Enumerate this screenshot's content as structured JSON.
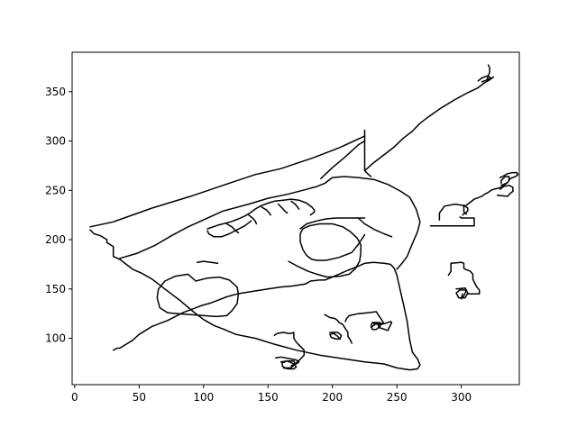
{
  "chart_data": {
    "type": "line",
    "title": "",
    "xlabel": "",
    "ylabel": "",
    "xlim": [
      -2,
      345
    ],
    "ylim": [
      53,
      390
    ],
    "x_ticks": [
      0,
      50,
      100,
      150,
      200,
      250,
      300
    ],
    "y_ticks": [
      100,
      150,
      200,
      250,
      300,
      350
    ],
    "x_tick_labels": [
      "0",
      "50",
      "100",
      "150",
      "200",
      "250",
      "300"
    ],
    "y_tick_labels": [
      "100",
      "150",
      "200",
      "250",
      "300",
      "350"
    ],
    "grid": false,
    "line_color": "#000000",
    "series": [
      {
        "x": [
          12,
          30,
          60,
          90,
          115,
          140,
          160,
          185,
          205,
          225
        ],
        "y": [
          213,
          218,
          232,
          244,
          255,
          266,
          272,
          283,
          293,
          305
        ]
      },
      {
        "x": [
          12,
          15,
          20,
          25,
          25,
          30,
          30,
          30,
          30,
          35,
          40,
          45,
          52,
          60,
          70,
          82,
          92,
          100,
          108,
          116,
          125,
          140,
          155,
          172,
          190,
          210,
          225,
          240,
          250,
          260,
          266,
          268,
          266,
          262,
          260,
          258,
          255,
          252,
          250,
          248,
          245,
          240,
          232,
          225,
          220,
          212,
          205,
          198,
          194,
          190,
          183,
          179,
          169,
          160,
          150,
          140,
          126,
          118,
          112,
          106,
          98,
          90,
          84,
          78,
          72,
          66,
          60,
          55,
          50,
          45,
          40,
          35,
          33,
          30
        ],
        "y": [
          210,
          206,
          204,
          200,
          197,
          193,
          190,
          186,
          183,
          180,
          175,
          170,
          166,
          160,
          150,
          138,
          127,
          119,
          113,
          109,
          104,
          100,
          94,
          88,
          83,
          79,
          76,
          74,
          70,
          68,
          69,
          73,
          79,
          86,
          98,
          117,
          135,
          152,
          164,
          171,
          175,
          176,
          177,
          176,
          173,
          169,
          165,
          161,
          159,
          159,
          158,
          155,
          153,
          152,
          150,
          148,
          145,
          142,
          139,
          136,
          133,
          129,
          126,
          122,
          118,
          115,
          112,
          108,
          104,
          98,
          94,
          90,
          90,
          88
        ]
      },
      {
        "x": [
          35,
          48,
          62,
          75,
          88,
          100,
          115,
          135,
          150,
          165,
          180,
          185,
          186,
          188,
          190,
          194,
          196,
          200,
          209,
          220,
          232,
          243,
          253,
          260,
          265,
          268,
          266,
          262,
          258,
          254,
          250
        ],
        "y": [
          181,
          186,
          194,
          204,
          213,
          220,
          229,
          236,
          242,
          246,
          251,
          253,
          253,
          254,
          255,
          257,
          259,
          263,
          264,
          263,
          261,
          256,
          249,
          243,
          231,
          218,
          208,
          196,
          183,
          176,
          170
        ]
      },
      {
        "x": [
          191,
          200,
          210,
          220,
          225
        ],
        "y": [
          262,
          273,
          284,
          296,
          300
        ]
      },
      {
        "x": [
          225,
          225,
          228,
          230
        ],
        "y": [
          311,
          270,
          266,
          264
        ]
      },
      {
        "x": [
          225,
          232,
          240,
          248,
          255,
          262,
          268,
          275,
          285,
          295,
          305,
          313,
          318,
          322,
          325
        ],
        "y": [
          270,
          278,
          286,
          294,
          303,
          310,
          318,
          325,
          334,
          342,
          349,
          354,
          359,
          362,
          365
        ]
      },
      {
        "x": [
          320,
          321,
          322,
          322,
          321
        ],
        "y": [
          363,
          366,
          370,
          374,
          377
        ]
      },
      {
        "x": [
          316,
          320,
          323,
          320,
          316,
          313
        ],
        "y": [
          360,
          362,
          364,
          366,
          364,
          361
        ]
      },
      {
        "x": [
          94,
          103,
          112,
          120,
          126,
          127,
          126,
          122,
          118,
          110,
          100,
          90,
          80,
          72,
          66,
          64,
          65,
          70,
          78,
          88,
          94
        ],
        "y": [
          158,
          161,
          162,
          159,
          152,
          145,
          135,
          128,
          123,
          122,
          123,
          124,
          125,
          126,
          131,
          141,
          150,
          158,
          163,
          165,
          158
        ]
      },
      {
        "x": [
          166,
          173,
          181,
          188,
          196,
          206,
          213,
          218,
          221,
          222,
          222,
          219,
          214,
          208,
          200,
          190,
          182,
          177,
          175,
          175,
          177,
          180,
          184,
          188,
          195,
          205,
          215,
          220,
          225
        ],
        "y": [
          178,
          173,
          168,
          165,
          162,
          163,
          165,
          171,
          178,
          186,
          195,
          202,
          208,
          213,
          216,
          216,
          214,
          211,
          206,
          198,
          190,
          184,
          180,
          179,
          179,
          182,
          187,
          195,
          205
        ]
      },
      {
        "x": [
          175,
          180,
          188,
          195,
          203,
          210,
          215,
          220,
          225
        ],
        "y": [
          211,
          216,
          219,
          221,
          222,
          222,
          222,
          222,
          222
        ]
      },
      {
        "x": [
          220,
          225,
          233,
          240,
          244,
          246
        ],
        "y": [
          222,
          216,
          210,
          206,
          204,
          203
        ]
      },
      {
        "x": [
          95,
          100,
          106,
          111
        ],
        "y": [
          177,
          178,
          177,
          176
        ]
      },
      {
        "x": [
          103,
          112,
          121,
          127,
          132,
          136,
          140,
          144,
          150,
          155,
          162,
          168,
          174,
          180,
          184,
          186,
          186,
          183
        ],
        "y": [
          211,
          215,
          218,
          221,
          224,
          227,
          231,
          234,
          237,
          239,
          240,
          241,
          240,
          237,
          233,
          230,
          228,
          225
        ]
      },
      {
        "x": [
          103,
          104,
          108,
          114,
          120,
          126,
          132,
          137
        ],
        "y": [
          209,
          206,
          203,
          203,
          206,
          210,
          214,
          219
        ]
      },
      {
        "x": [
          118,
          122,
          125,
          127
        ],
        "y": [
          216,
          213,
          209,
          207
        ]
      },
      {
        "x": [
          135,
          138,
          140,
          141
        ],
        "y": [
          225,
          222,
          219,
          216
        ]
      },
      {
        "x": [
          145,
          149,
          151,
          152
        ],
        "y": [
          233,
          230,
          227,
          225
        ]
      },
      {
        "x": [
          158,
          161,
          163,
          165
        ],
        "y": [
          236,
          232,
          229,
          227
        ]
      },
      {
        "x": [
          168,
          171,
          173,
          174
        ],
        "y": [
          239,
          236,
          233,
          231
        ]
      },
      {
        "x": [
          276,
          285,
          295,
          303,
          306,
          310,
          310,
          306,
          303,
          300,
          299
        ],
        "y": [
          214,
          214,
          214,
          214,
          214,
          214,
          222,
          222,
          222,
          222,
          223
        ]
      },
      {
        "x": [
          283,
          283,
          287,
          295,
          300,
          303,
          305,
          310,
          316,
          318,
          321,
          323,
          325,
          328,
          331,
          333,
          336,
          338,
          342,
          344,
          343,
          340,
          336,
          332,
          330
        ],
        "y": [
          220,
          227,
          234,
          236,
          235,
          234,
          236,
          241,
          244,
          246,
          248,
          250,
          251,
          252,
          253,
          255,
          258,
          262,
          264,
          266,
          268,
          268,
          267,
          264,
          263
        ]
      },
      {
        "x": [
          301,
          305,
          305,
          302,
          302,
          304
        ],
        "y": [
          225,
          229,
          232,
          235,
          228,
          226
        ]
      },
      {
        "x": [
          328,
          336,
          338,
          340,
          340,
          337,
          333,
          330
        ],
        "y": [
          245,
          244,
          247,
          249,
          253,
          255,
          254,
          251
        ]
      },
      {
        "x": [
          331,
          333,
          336,
          337,
          337,
          334,
          331,
          331
        ],
        "y": [
          255,
          256,
          258,
          260,
          264,
          264,
          260,
          257
        ]
      },
      {
        "x": [
          290,
          292,
          292,
          300,
          302,
          302,
          303,
          307,
          309,
          309,
          310,
          312,
          314,
          314,
          308,
          305
        ],
        "y": [
          164,
          168,
          176,
          177,
          176,
          171,
          170,
          168,
          165,
          160,
          157,
          152,
          149,
          145,
          145,
          145
        ]
      },
      {
        "x": [
          296,
          303,
          305,
          303,
          298,
          296,
          299,
          304,
          302,
          300,
          301
        ],
        "y": [
          150,
          151,
          146,
          141,
          141,
          146,
          149,
          149,
          143,
          140,
          145
        ]
      },
      {
        "x": [
          194,
          198,
          202,
          204,
          205,
          208,
          210,
          212,
          212,
          214,
          215
        ],
        "y": [
          124,
          121,
          120,
          118,
          116,
          114,
          110,
          106,
          102,
          98,
          95
        ]
      },
      {
        "x": [
          210,
          211,
          213,
          220,
          228,
          234,
          236,
          238,
          240,
          238,
          236,
          232
        ],
        "y": [
          117,
          120,
          123,
          125,
          126,
          127,
          123,
          119,
          115,
          114,
          114,
          115
        ]
      },
      {
        "x": [
          236,
          241,
          245,
          246,
          243,
          236,
          235
        ],
        "y": [
          115,
          115,
          117,
          116,
          108,
          111,
          116
        ]
      },
      {
        "x": [
          230,
          234,
          237,
          237,
          234,
          231,
          230,
          231,
          235,
          236
        ],
        "y": [
          111,
          115,
          116,
          112,
          109,
          109,
          113,
          116,
          116,
          112
        ]
      },
      {
        "x": [
          198,
          204,
          207,
          206,
          204,
          201,
          199,
          198,
          201,
          204,
          206
        ],
        "y": [
          106,
          106,
          103,
          100,
          99,
          100,
          101,
          104,
          105,
          102,
          99
        ]
      },
      {
        "x": [
          155,
          157,
          162,
          166,
          168,
          170,
          170,
          172,
          175,
          178,
          178,
          176,
          172,
          168
        ],
        "y": [
          103,
          105,
          106,
          105,
          105,
          106,
          100,
          96,
          92,
          88,
          83,
          80,
          75,
          72
        ]
      },
      {
        "x": [
          156,
          160,
          168,
          172,
          174,
          172
        ],
        "y": [
          80,
          81,
          79,
          78,
          76,
          74
        ]
      },
      {
        "x": [
          160,
          165,
          170,
          171,
          168,
          163,
          161,
          161,
          165,
          170,
          172,
          170,
          166,
          162
        ],
        "y": [
          76,
          77,
          77,
          74,
          70,
          70,
          72,
          75,
          77,
          74,
          71,
          69,
          69,
          70
        ]
      }
    ]
  }
}
